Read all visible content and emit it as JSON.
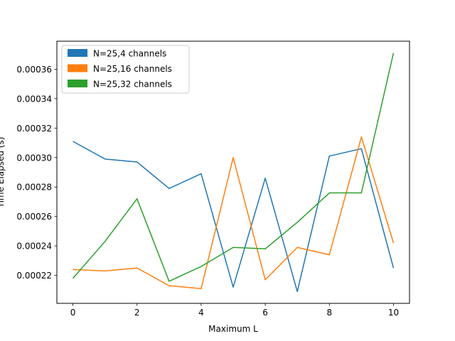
{
  "chart_data": {
    "type": "line",
    "title": "",
    "xlabel": "Maximum L",
    "ylabel": "Time Elapsed (s)",
    "x": [
      0,
      1,
      2,
      3,
      4,
      5,
      6,
      7,
      8,
      9,
      10
    ],
    "xlim": [
      -0.5,
      10.5
    ],
    "ylim": [
      0.000201,
      0.000379
    ],
    "xticks": [
      0,
      2,
      4,
      6,
      8,
      10
    ],
    "yticks": [
      0.00022,
      0.00024,
      0.00026,
      0.00028,
      0.0003,
      0.00032,
      0.00034,
      0.00036
    ],
    "ytick_labels": [
      "0.00022",
      "0.00024",
      "0.00026",
      "0.00028",
      "0.00030",
      "0.00032",
      "0.00034",
      "0.00036"
    ],
    "grid": false,
    "legend_position": "top-left",
    "series": [
      {
        "name": "N=25,4 channels",
        "color": "#1f77b4",
        "values": [
          0.000311,
          0.000299,
          0.000297,
          0.000279,
          0.000289,
          0.000212,
          0.000286,
          0.000209,
          0.000301,
          0.000306,
          0.000225
        ]
      },
      {
        "name": "N=25,16 channels",
        "color": "#ff7f0e",
        "values": [
          0.000224,
          0.000223,
          0.000225,
          0.000213,
          0.000211,
          0.0003,
          0.000217,
          0.000239,
          0.000234,
          0.000314,
          0.000242
        ]
      },
      {
        "name": "N=25,32 channels",
        "color": "#2ca02c",
        "values": [
          0.000218,
          0.000243,
          0.000272,
          0.000216,
          0.000226,
          0.000239,
          0.000238,
          0.000256,
          0.000276,
          0.000276,
          0.000371
        ]
      }
    ]
  }
}
